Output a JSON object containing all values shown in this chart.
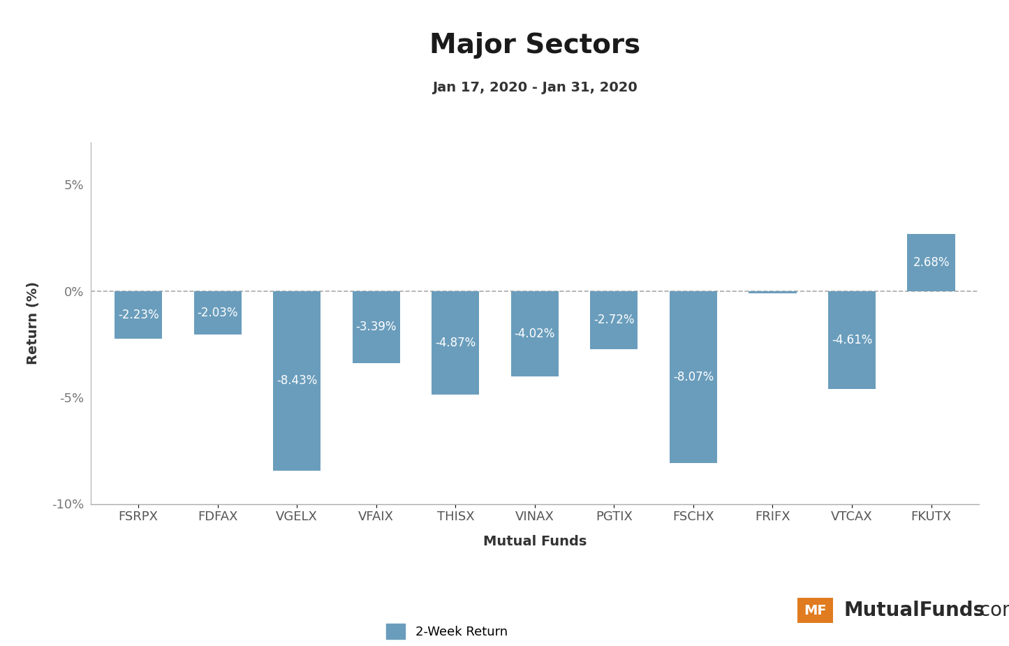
{
  "title": "Major Sectors",
  "subtitle": "Jan 17, 2020 - Jan 31, 2020",
  "xlabel": "Mutual Funds",
  "ylabel": "Return (%)",
  "categories": [
    "FSRPX",
    "FDFAX",
    "VGELX",
    "VFAIX",
    "THISX",
    "VINAX",
    "PGTIX",
    "FSCHX",
    "FRIFX",
    "VTCAX",
    "FKUTX"
  ],
  "values": [
    -2.23,
    -2.03,
    -8.43,
    -3.39,
    -4.87,
    -4.02,
    -2.72,
    -8.07,
    -0.1,
    -4.61,
    2.68
  ],
  "bar_color": "#6a9dbc",
  "label_color": "white",
  "ylim": [
    -10,
    7
  ],
  "yticks": [
    -10,
    -5,
    0,
    5
  ],
  "ytick_labels": [
    "-10%",
    "-5%",
    "0%",
    "5%"
  ],
  "background_color": "#ffffff",
  "legend_label": "2-Week Return",
  "title_fontsize": 28,
  "subtitle_fontsize": 14,
  "axis_label_fontsize": 14,
  "tick_fontsize": 13,
  "bar_label_fontsize": 12,
  "watermark_orange": "#e07b20"
}
